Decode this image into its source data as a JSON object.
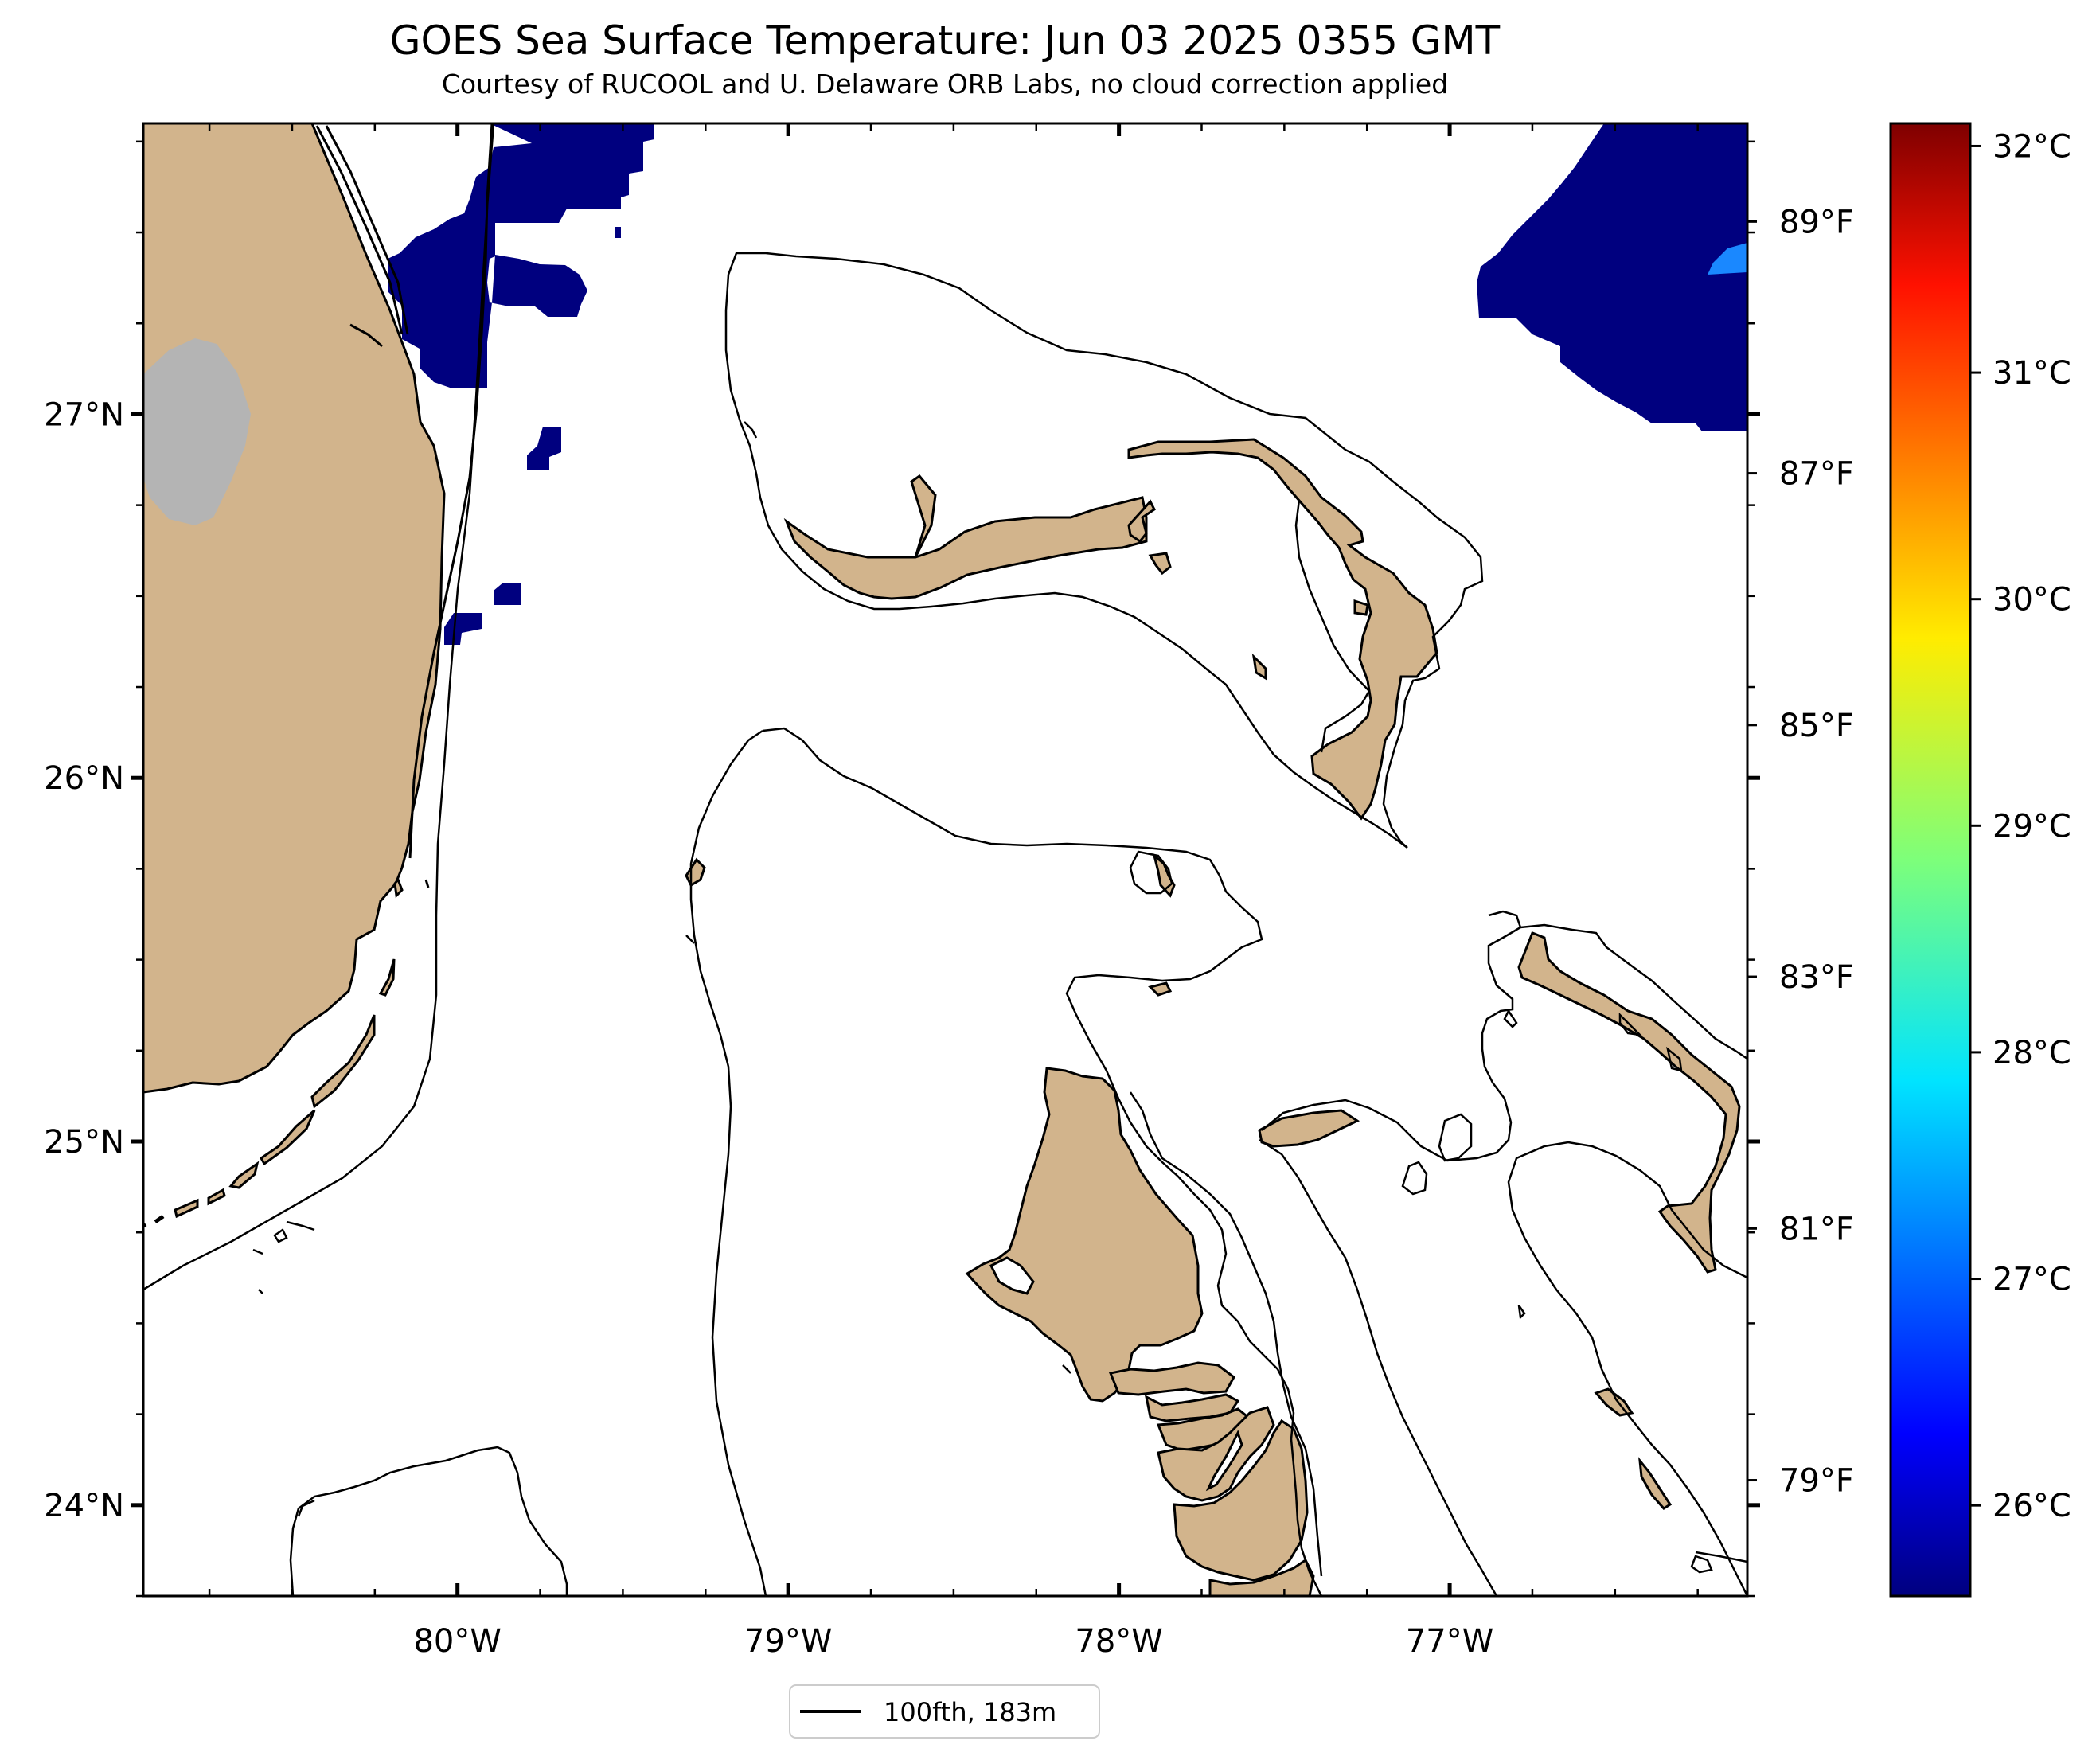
{
  "map": {
    "title": "GOES Sea Surface Temperature: Jun 03 2025 0355 GMT",
    "subtitle": "Courtesy of RUCOOL and U. Delaware ORB Labs, no cloud correction applied",
    "extent": {
      "lon_min": -80.95,
      "lon_max": -76.1,
      "lat_min": 23.75,
      "lat_max": 27.8
    },
    "lon_ticks": [
      {
        "value": -80,
        "label": "80°W"
      },
      {
        "value": -79,
        "label": "79°W"
      },
      {
        "value": -78,
        "label": "78°W"
      },
      {
        "value": -77,
        "label": "77°W"
      }
    ],
    "lat_ticks": [
      {
        "value": 27,
        "label": "27°N"
      },
      {
        "value": 26,
        "label": "26°N"
      },
      {
        "value": 25,
        "label": "25°N"
      },
      {
        "value": 24,
        "label": "24°N"
      }
    ],
    "right_axis_labels": [
      {
        "value": 89,
        "label": "89°F"
      },
      {
        "value": 87,
        "label": "87°F"
      },
      {
        "value": 85,
        "label": "85°F"
      },
      {
        "value": 83,
        "label": "83°F"
      },
      {
        "value": 81,
        "label": "81°F"
      },
      {
        "value": 79,
        "label": "79°F"
      }
    ],
    "colorbar": {
      "min_c": 25.6,
      "max_c": 32.1,
      "colormap": "jet",
      "ticks": [
        {
          "value": 32,
          "label": "32°C"
        },
        {
          "value": 31,
          "label": "31°C"
        },
        {
          "value": 30,
          "label": "30°C"
        },
        {
          "value": 29,
          "label": "29°C"
        },
        {
          "value": 28,
          "label": "28°C"
        },
        {
          "value": 27,
          "label": "27°C"
        },
        {
          "value": 26,
          "label": "26°C"
        }
      ]
    },
    "legend": {
      "label": "100fth, 183m"
    },
    "colors": {
      "land": "#d2b48c",
      "lake": "#b4b4b4",
      "cold_sst": "#00007f",
      "warm_patch": "#1a88ff",
      "contour": "#000000"
    }
  }
}
